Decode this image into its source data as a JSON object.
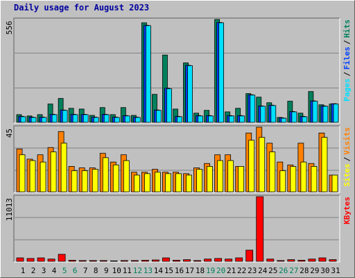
{
  "chart_data": [
    {
      "type": "bar",
      "title": "Daily usage for August 2023",
      "categories": [
        "1",
        "2",
        "3",
        "4",
        "5",
        "6",
        "7",
        "8",
        "9",
        "10",
        "11",
        "12",
        "13",
        "14",
        "15",
        "16",
        "17",
        "18",
        "19",
        "20",
        "21",
        "22",
        "23",
        "24",
        "25",
        "26",
        "27",
        "28",
        "29",
        "30",
        "31"
      ],
      "category_colors": [
        "#000000",
        "#000000",
        "#000000",
        "#000000",
        "#00805c",
        "#00805c",
        "#000000",
        "#000000",
        "#000000",
        "#000000",
        "#000000",
        "#00805c",
        "#00805c",
        "#000000",
        "#000000",
        "#000000",
        "#000000",
        "#000000",
        "#00805c",
        "#00805c",
        "#000000",
        "#000000",
        "#000000",
        "#000000",
        "#000000",
        "#00805c",
        "#00805c",
        "#000000",
        "#000000",
        "#000000",
        "#000000"
      ],
      "separator": "/",
      "ylim": [
        0,
        556
      ],
      "yticks": [
        556
      ],
      "grid": true,
      "series": [
        {
          "name": "Hits",
          "color": "#00805c",
          "values": [
            45,
            38,
            45,
            102,
            132,
            79,
            75,
            41,
            83,
            45,
            83,
            41,
            538,
            154,
            365,
            75,
            323,
            53,
            68,
            556,
            60,
            79,
            158,
            139,
            109,
            30,
            117,
            53,
            169,
            98,
            102
          ]
        },
        {
          "name": "Files",
          "color": "#0040ff",
          "values": [
            36,
            32,
            32,
            47,
            70,
            47,
            47,
            32,
            47,
            32,
            40,
            32,
            525,
            70,
            187,
            36,
            310,
            40,
            40,
            540,
            40,
            40,
            152,
            92,
            96,
            28,
            62,
            36,
            119,
            92,
            104
          ]
        },
        {
          "name": "Pages",
          "color": "#00e0ff",
          "values": [
            34,
            30,
            30,
            45,
            68,
            45,
            45,
            30,
            45,
            30,
            38,
            30,
            523,
            68,
            184,
            34,
            308,
            38,
            38,
            538,
            38,
            38,
            150,
            90,
            94,
            26,
            60,
            34,
            117,
            90,
            102
          ]
        }
      ]
    },
    {
      "type": "bar",
      "separator": "/",
      "ylim": [
        0,
        45
      ],
      "yticks": [
        45
      ],
      "grid": true,
      "series": [
        {
          "name": "Visits",
          "color": "#ff8000",
          "values": [
            30,
            23,
            26,
            31,
            42,
            18,
            17,
            17,
            27,
            21,
            26,
            14,
            14,
            16,
            14,
            14,
            13,
            17,
            20,
            26,
            26,
            18,
            41,
            45,
            34,
            21,
            19,
            34,
            20,
            41,
            12
          ]
        },
        {
          "name": "Sites",
          "color": "#ffff00",
          "values": [
            26,
            22,
            21,
            28,
            34,
            15,
            15,
            16,
            24,
            19,
            22,
            12,
            13,
            14,
            13,
            13,
            12,
            16,
            18,
            22,
            22,
            18,
            36,
            38,
            28,
            15,
            18,
            21,
            18,
            38,
            12
          ]
        }
      ]
    },
    {
      "type": "bar",
      "ylim": [
        0,
        11013
      ],
      "yticks": [
        11013
      ],
      "grid": true,
      "series": [
        {
          "name": "KBytes",
          "color": "#ff0000",
          "values": [
            700,
            600,
            700,
            500,
            1300,
            300,
            250,
            250,
            250,
            200,
            250,
            250,
            300,
            350,
            700,
            300,
            400,
            250,
            500,
            600,
            500,
            700,
            2000,
            11013,
            500,
            250,
            400,
            300,
            500,
            700,
            400
          ]
        }
      ]
    }
  ]
}
